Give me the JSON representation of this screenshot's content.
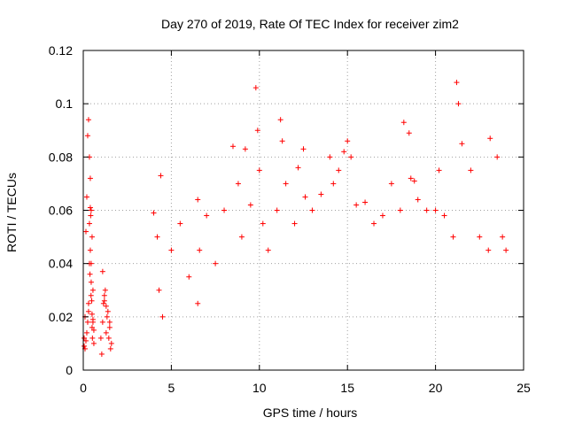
{
  "chart_data": {
    "type": "scatter",
    "title": "Day 270 of 2019, Rate Of TEC Index for receiver zim2",
    "xlabel": "GPS time / hours",
    "ylabel": "ROTI / TECUs",
    "xlim": [
      0,
      25
    ],
    "ylim": [
      0,
      0.12
    ],
    "xticks": [
      0,
      5,
      10,
      15,
      20,
      25
    ],
    "xtick_labels": [
      "0",
      "5",
      "10",
      "15",
      "20",
      "25"
    ],
    "yticks": [
      0,
      0.02,
      0.04,
      0.06,
      0.08,
      0.1,
      0.12
    ],
    "ytick_labels": [
      "0",
      "0.02",
      "0.04",
      "0.06",
      "0.08",
      "0.1",
      "0.12"
    ],
    "grid": true,
    "marker": "+",
    "color": "#ff0000",
    "series": [
      {
        "x": [
          0.05,
          0.1,
          0.15,
          0.2,
          0.25,
          0.3,
          0.35,
          0.4,
          0.45,
          0.5,
          0.55,
          0.6,
          0.1,
          0.2,
          0.3,
          0.35,
          0.4,
          0.45,
          0.5,
          0.55,
          0.6,
          0.35,
          0.4,
          0.42,
          0.45,
          0.48,
          0.5,
          0.52,
          0.05,
          0.15,
          0.25,
          0.3,
          0.38,
          0.44,
          0.55,
          1.0,
          1.1,
          1.2,
          1.3,
          1.4,
          1.5,
          1.6,
          1.05,
          1.15,
          1.25,
          1.35,
          1.45,
          1.55,
          1.1,
          1.2,
          1.3,
          1.5,
          4.0,
          4.2,
          4.4,
          4.3,
          4.5,
          5.0,
          5.5,
          6.0,
          6.5,
          6.6,
          6.5,
          7.0,
          7.5,
          8.0,
          8.5,
          8.8,
          9.0,
          9.2,
          9.5,
          9.8,
          9.9,
          10.0,
          10.2,
          10.5,
          11.0,
          11.2,
          11.3,
          11.5,
          12.0,
          12.2,
          12.5,
          12.6,
          13.0,
          13.5,
          14.0,
          14.2,
          14.5,
          14.8,
          15.0,
          15.2,
          15.5,
          16.0,
          16.5,
          17.0,
          17.5,
          18.0,
          18.2,
          18.5,
          18.6,
          18.8,
          19.0,
          19.5,
          20.0,
          20.2,
          20.5,
          21.0,
          21.2,
          21.3,
          21.5,
          22.0,
          22.5,
          23.0,
          23.1,
          23.5,
          23.8,
          24.0
        ],
        "y": [
          0.012,
          0.02,
          0.052,
          0.065,
          0.088,
          0.094,
          0.08,
          0.072,
          0.06,
          0.05,
          0.03,
          0.015,
          0.008,
          0.014,
          0.025,
          0.04,
          0.045,
          0.033,
          0.021,
          0.018,
          0.01,
          0.055,
          0.061,
          0.058,
          0.04,
          0.026,
          0.016,
          0.012,
          0.009,
          0.011,
          0.018,
          0.022,
          0.036,
          0.028,
          0.019,
          0.012,
          0.018,
          0.028,
          0.014,
          0.022,
          0.016,
          0.01,
          0.006,
          0.025,
          0.03,
          0.02,
          0.012,
          0.008,
          0.037,
          0.026,
          0.024,
          0.018,
          0.059,
          0.05,
          0.073,
          0.03,
          0.02,
          0.045,
          0.055,
          0.035,
          0.064,
          0.045,
          0.025,
          0.058,
          0.04,
          0.06,
          0.084,
          0.07,
          0.05,
          0.083,
          0.062,
          0.106,
          0.09,
          0.075,
          0.055,
          0.045,
          0.06,
          0.094,
          0.086,
          0.07,
          0.055,
          0.076,
          0.083,
          0.065,
          0.06,
          0.066,
          0.08,
          0.07,
          0.075,
          0.082,
          0.086,
          0.08,
          0.062,
          0.063,
          0.055,
          0.058,
          0.07,
          0.06,
          0.093,
          0.089,
          0.072,
          0.071,
          0.064,
          0.06,
          0.06,
          0.075,
          0.058,
          0.05,
          0.108,
          0.1,
          0.085,
          0.075,
          0.05,
          0.045,
          0.087,
          0.08,
          0.05,
          0.045
        ]
      }
    ]
  }
}
